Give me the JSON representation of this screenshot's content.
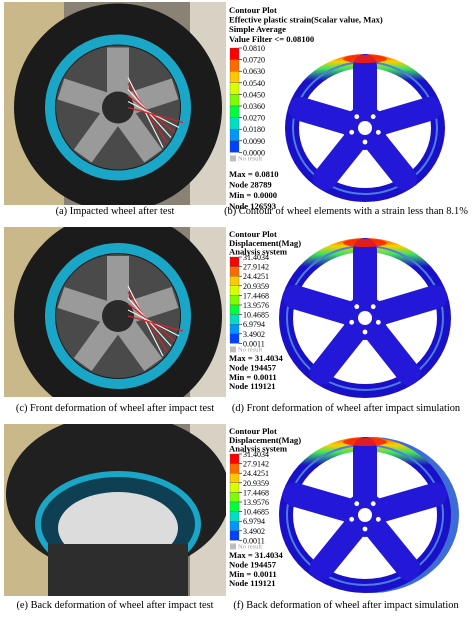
{
  "panels": [
    {
      "photo_caption": "(a) Impacted wheel after test",
      "contour_caption": "(b) Contour of wheel elements with a strain less than 8.1%",
      "legend": {
        "header": [
          "Contour Plot",
          "Effective plastic strain(Scalar value, Max)",
          "Simple Average",
          "Value Filter <= 0.08100"
        ],
        "values": [
          "0.0810",
          "0.0720",
          "0.0630",
          "0.0540",
          "0.0450",
          "0.0360",
          "0.0270",
          "0.0180",
          "0.0090",
          "0.0000"
        ],
        "no_result": "No result",
        "stats": [
          "Max = 0.0810",
          "Node 28789",
          "Min = 0.0000",
          "Node 126593"
        ]
      }
    },
    {
      "photo_caption": "(c) Front deformation of wheel after impact test",
      "contour_caption": "(d) Front deformation of wheel after impact simulation",
      "legend": {
        "header": [
          "Contour Plot",
          "Displacement(Mag)",
          "Analysis system"
        ],
        "values": [
          "31.4034",
          "27.9142",
          "24.4251",
          "20.9359",
          "17.4468",
          "13.9576",
          "10.4685",
          "6.9794",
          "3.4902",
          "0.0011"
        ],
        "no_result": "No result",
        "stats": [
          "Max = 31.4034",
          "Node 194457",
          "Min = 0.0011",
          "Node 119121"
        ]
      }
    },
    {
      "photo_caption": "(e) Back deformation of wheel after impact test",
      "contour_caption": "(f) Back deformation of wheel after impact simulation",
      "legend": {
        "header": [
          "Contour Plot",
          "Displacement(Mag)",
          "Analysis system"
        ],
        "values": [
          "31.4034",
          "27.9142",
          "24.4251",
          "20.9359",
          "17.4468",
          "13.9576",
          "10.4685",
          "6.9794",
          "3.4902",
          "0.0011"
        ],
        "no_result": "No result",
        "stats": [
          "Max = 31.4034",
          "Node 194457",
          "Min = 0.0011",
          "Node 119121"
        ]
      }
    }
  ]
}
